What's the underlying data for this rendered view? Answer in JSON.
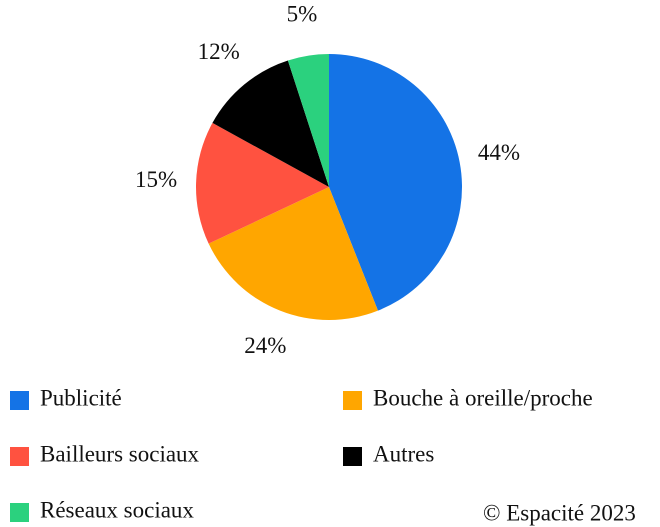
{
  "chart_data": {
    "type": "pie",
    "categories": [
      "Publicité",
      "Bouche à oreille/proche",
      "Bailleurs sociaux",
      "Autres",
      "Réseaux sociaux"
    ],
    "values": [
      44,
      24,
      15,
      12,
      5
    ],
    "value_labels": [
      "44%",
      "24%",
      "15%",
      "12%",
      "5%"
    ],
    "colors": [
      "#1473e6",
      "#ffa600",
      "#ff5240",
      "#000000",
      "#2bd17e"
    ],
    "legend": "bottom",
    "footer": "© Espacité 2023"
  }
}
